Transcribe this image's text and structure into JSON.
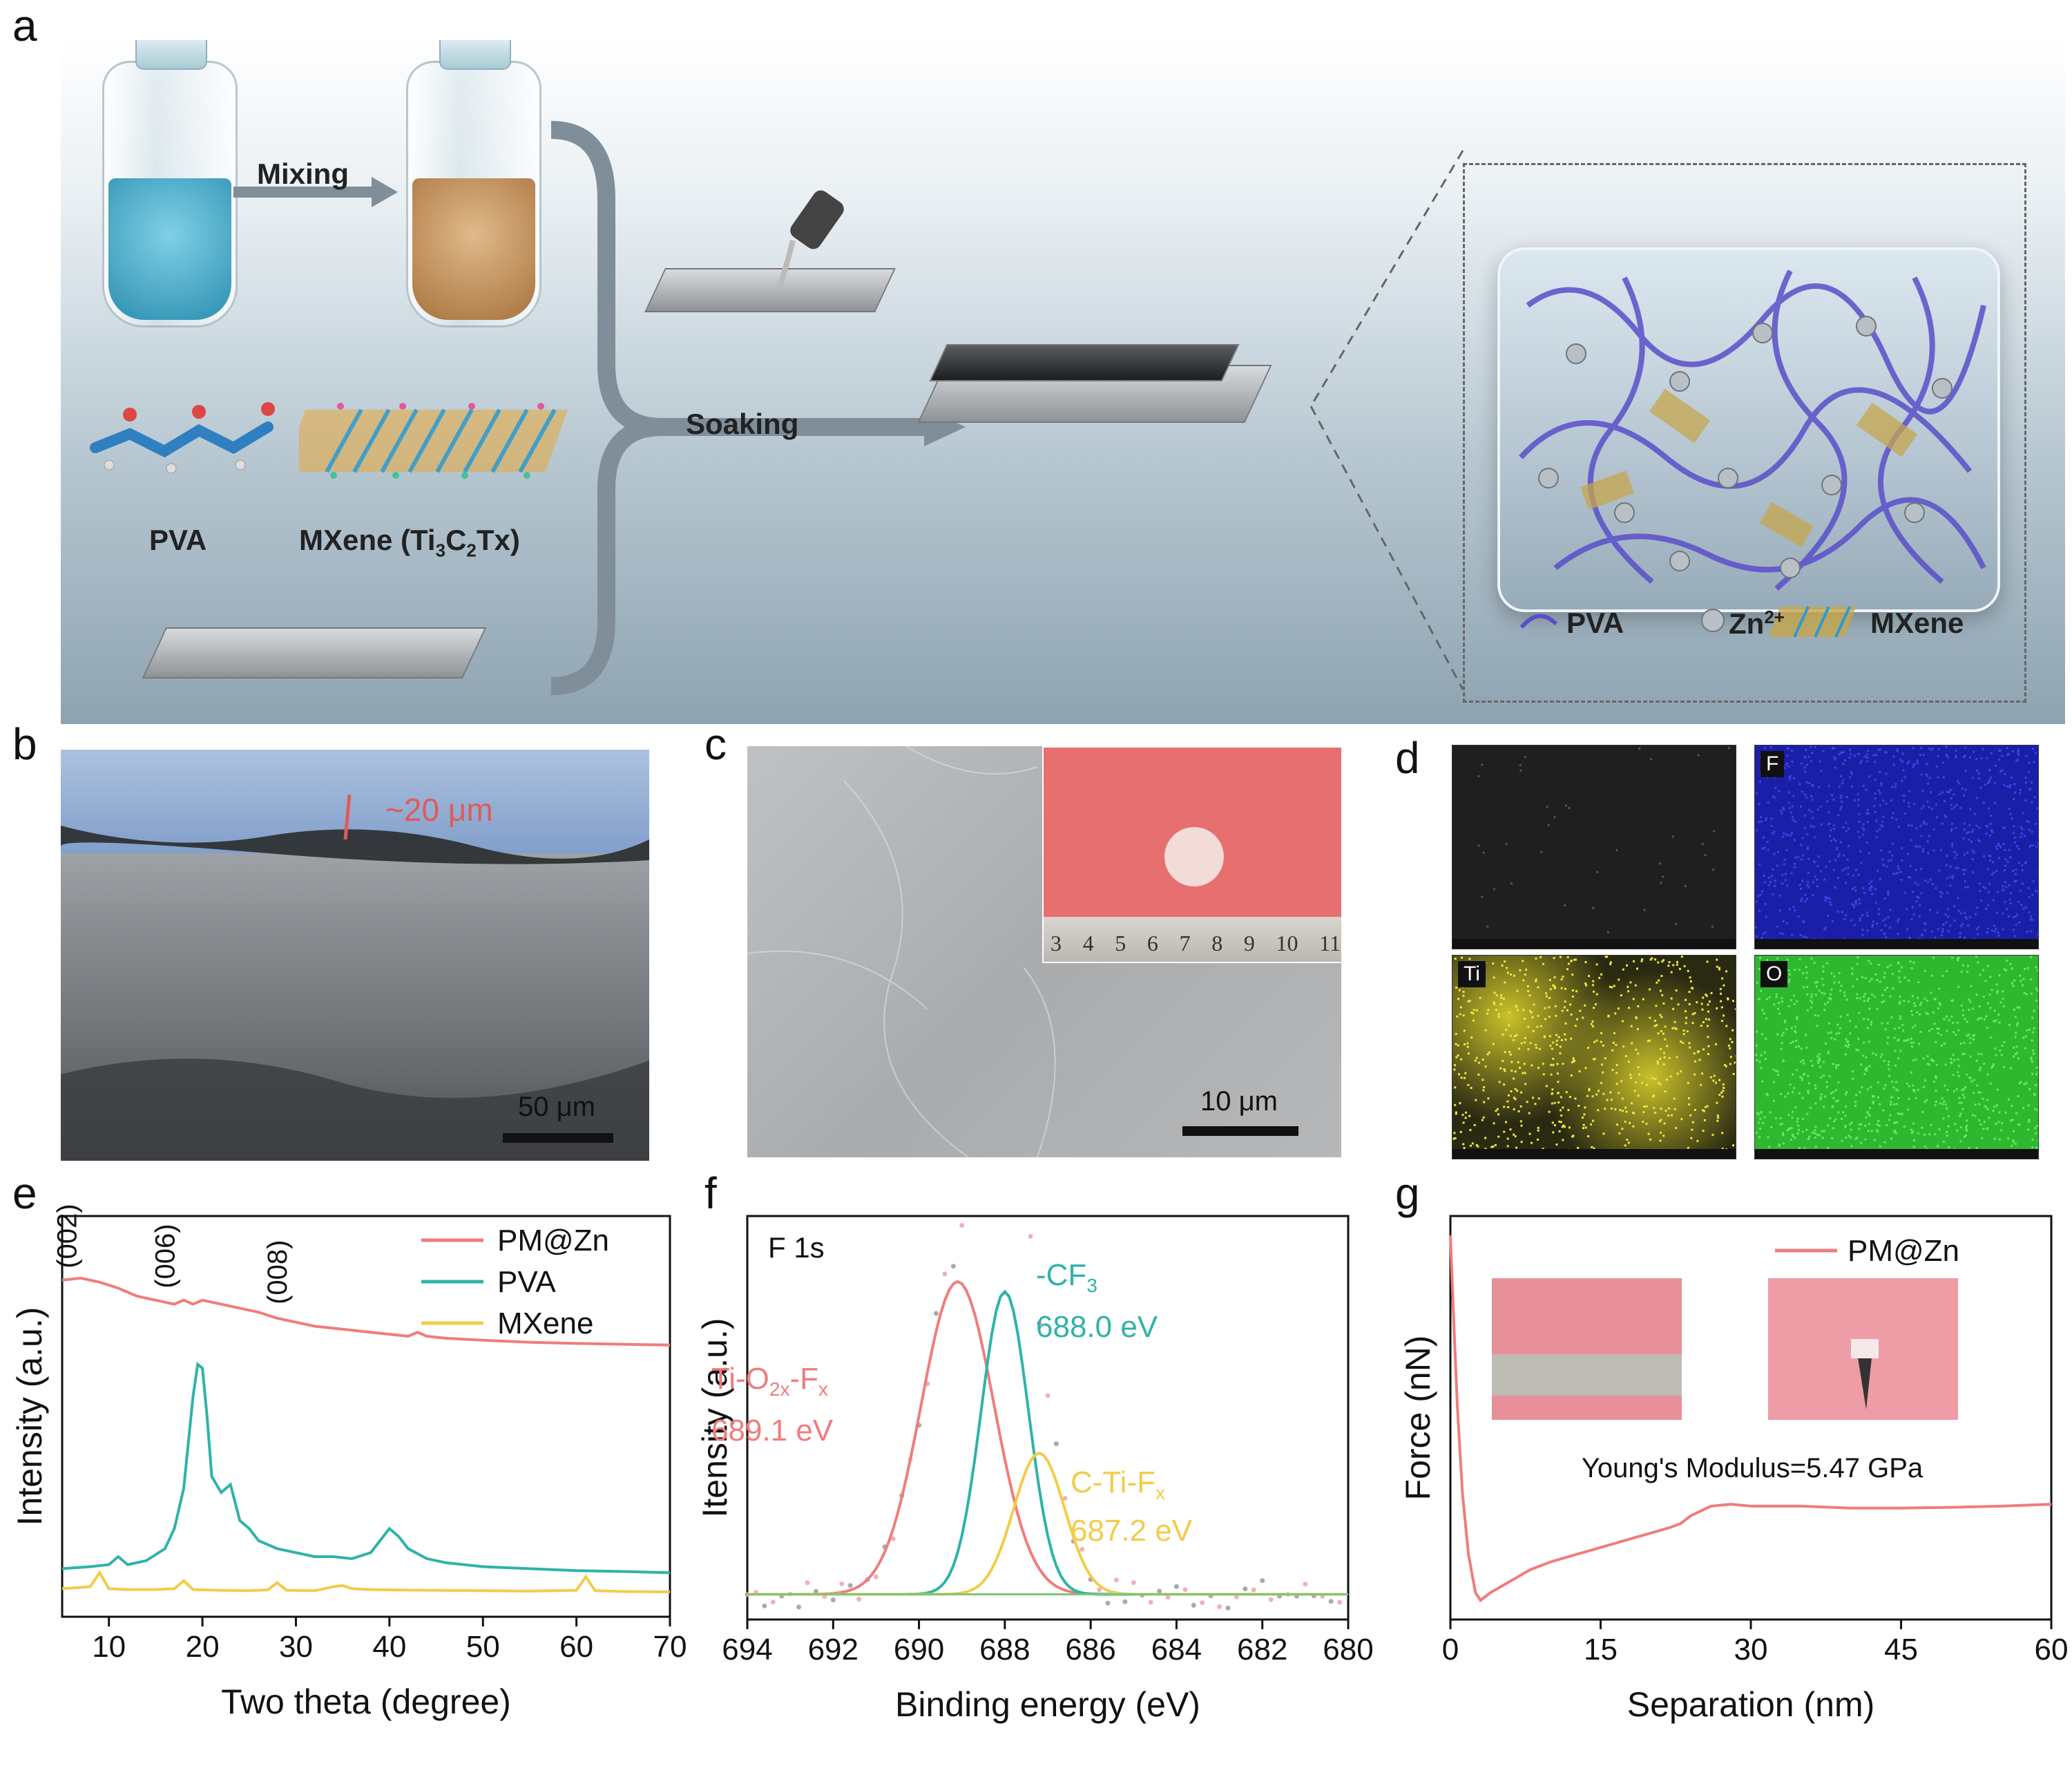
{
  "panel_labels": {
    "a": "a",
    "b": "b",
    "c": "c",
    "d": "d",
    "e": "e",
    "f": "f",
    "g": "g"
  },
  "schematic": {
    "mixing": "Mixing",
    "soaking": "Soaking",
    "pva": "PVA",
    "mxene": "MXene (Ti",
    "mxene_sub1": "3",
    "mxene_c": "C",
    "mxene_sub2": "2",
    "mxene_tail": "Tx)",
    "legend": {
      "pva": "PVA",
      "zn": "Zn",
      "zn_sup": "2+",
      "mxene": "MXene"
    },
    "colors": {
      "pva_liquid": "#3aa7c9",
      "mixed_liquid": "#c99a66",
      "pva_chain": "#5a4fc9"
    }
  },
  "panel_b": {
    "thickness": "~20 μm",
    "scalebar": "50 μm"
  },
  "panel_c": {
    "scalebar": "10 μm",
    "ruler": [
      "3",
      "4",
      "5",
      "6",
      "7",
      "8",
      "9",
      "10",
      "11"
    ]
  },
  "panel_d": {
    "maps": [
      "",
      "F",
      "Ti",
      "O"
    ],
    "colors": [
      "#1a1a1a",
      "#1b1fa8",
      "#c9c12a",
      "#2fb82f"
    ]
  },
  "chart_data": [
    {
      "type": "line",
      "panel": "e",
      "xlabel": "Two theta (degree)",
      "ylabel": "Intensity (a.u.)",
      "xlim": [
        5,
        70
      ],
      "xticks": [
        10,
        20,
        30,
        40,
        50,
        60,
        70
      ],
      "annotations": [
        "(002)",
        "(006)",
        "(008)"
      ],
      "legend_position": "top-right",
      "series": [
        {
          "name": "PM@Zn",
          "color": "#f07c7c",
          "x": [
            5,
            7,
            9,
            11,
            13,
            15,
            17,
            18,
            19,
            20,
            21,
            22,
            24,
            26,
            28,
            30,
            32,
            34,
            36,
            38,
            40,
            42,
            43,
            44,
            46,
            50,
            55,
            60,
            65,
            70
          ],
          "y": [
            0.84,
            0.845,
            0.835,
            0.82,
            0.8,
            0.79,
            0.78,
            0.79,
            0.78,
            0.79,
            0.785,
            0.78,
            0.77,
            0.76,
            0.745,
            0.735,
            0.725,
            0.72,
            0.715,
            0.71,
            0.705,
            0.7,
            0.71,
            0.7,
            0.695,
            0.69,
            0.685,
            0.682,
            0.68,
            0.678
          ]
        },
        {
          "name": "PVA",
          "color": "#2fb3a8",
          "x": [
            5,
            8,
            10,
            11,
            12,
            14,
            16,
            17,
            18,
            19,
            19.5,
            20,
            20.5,
            21,
            22,
            23,
            24,
            25,
            26,
            28,
            30,
            32,
            34,
            36,
            38,
            40,
            41,
            42,
            44,
            46,
            50,
            55,
            60,
            65,
            70
          ],
          "y": [
            0.12,
            0.125,
            0.13,
            0.15,
            0.13,
            0.14,
            0.17,
            0.22,
            0.32,
            0.55,
            0.63,
            0.62,
            0.5,
            0.35,
            0.31,
            0.33,
            0.24,
            0.22,
            0.19,
            0.17,
            0.16,
            0.15,
            0.15,
            0.145,
            0.16,
            0.22,
            0.2,
            0.17,
            0.145,
            0.135,
            0.125,
            0.12,
            0.115,
            0.113,
            0.11
          ]
        },
        {
          "name": "MXene",
          "color": "#f2cc4a",
          "x": [
            5,
            8,
            9,
            10,
            12,
            15,
            17,
            18,
            19,
            22,
            25,
            27,
            28,
            29,
            32,
            34,
            35,
            36,
            38,
            40,
            45,
            50,
            55,
            60,
            61,
            62,
            65,
            70
          ],
          "y": [
            0.07,
            0.075,
            0.11,
            0.07,
            0.068,
            0.068,
            0.07,
            0.09,
            0.068,
            0.066,
            0.065,
            0.067,
            0.085,
            0.066,
            0.065,
            0.075,
            0.078,
            0.07,
            0.068,
            0.067,
            0.066,
            0.065,
            0.064,
            0.066,
            0.1,
            0.065,
            0.063,
            0.062
          ]
        }
      ]
    },
    {
      "type": "line",
      "panel": "f",
      "title": "F 1s",
      "xlabel": "Binding energy (eV)",
      "ylabel": "Itensity (a.u.)",
      "xlim": [
        694,
        680
      ],
      "xticks": [
        694,
        692,
        690,
        688,
        686,
        684,
        682,
        680
      ],
      "peaks": [
        {
          "label": "Ti-O2x-Fx",
          "sub1": "2x",
          "sub2": "x",
          "center": 689.1,
          "energy_label": "689.1 eV",
          "amplitude": 0.62,
          "fwhm": 2.0,
          "color": "#f07c7c"
        },
        {
          "label": "-CF3",
          "sub": "3",
          "center": 688.0,
          "energy_label": "688.0 eV",
          "amplitude": 0.6,
          "fwhm": 1.3,
          "color": "#2fb3a8"
        },
        {
          "label": "C-Ti-Fx",
          "sub": "x",
          "center": 687.2,
          "energy_label": "687.2 eV",
          "amplitude": 0.28,
          "fwhm": 1.4,
          "color": "#f2cc4a"
        }
      ],
      "baseline": 0.05
    },
    {
      "type": "line",
      "panel": "g",
      "xlabel": "Separation (nm)",
      "ylabel": "Force (nN)",
      "xlim": [
        0,
        60
      ],
      "xticks": [
        0,
        15,
        30,
        45,
        60
      ],
      "annotation": "Young's Modulus=5.47 GPa",
      "legend_position": "top-right",
      "series": [
        {
          "name": "PM@Zn",
          "color": "#f07c7c",
          "x": [
            0,
            0.3,
            0.7,
            1.2,
            1.8,
            2.5,
            3.0,
            4,
            6,
            8,
            10,
            12,
            14,
            16,
            18,
            20,
            22,
            23,
            24,
            26,
            28,
            30,
            35,
            40,
            45,
            50,
            55,
            60
          ],
          "y": [
            0.95,
            0.75,
            0.5,
            0.28,
            0.12,
            0.02,
            0.0,
            0.02,
            0.05,
            0.08,
            0.1,
            0.115,
            0.13,
            0.145,
            0.16,
            0.175,
            0.19,
            0.2,
            0.22,
            0.245,
            0.25,
            0.245,
            0.245,
            0.24,
            0.24,
            0.242,
            0.245,
            0.25
          ]
        }
      ]
    }
  ]
}
